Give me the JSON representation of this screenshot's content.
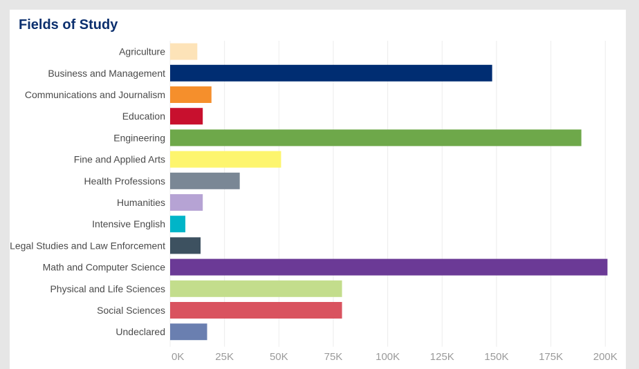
{
  "chart_data": {
    "type": "bar",
    "orientation": "horizontal",
    "title": "Fields of Study",
    "categories": [
      "Agriculture",
      "Business and Management",
      "Communications and Journalism",
      "Education",
      "Engineering",
      "Fine and Applied Arts",
      "Health Professions",
      "Humanities",
      "Intensive English",
      "Legal Studies and Law Enforcement",
      "Math and Computer Science",
      "Physical and Life Sciences",
      "Social Sciences",
      "Undeclared"
    ],
    "values": [
      12500,
      148000,
      19000,
      15000,
      189000,
      51000,
      32000,
      15000,
      7000,
      14000,
      201000,
      79000,
      79000,
      17000
    ],
    "colors": [
      "#fde3b8",
      "#002d72",
      "#f58f2c",
      "#c8102e",
      "#6ea84a",
      "#fdf56e",
      "#7a8795",
      "#b6a3d4",
      "#00b5c8",
      "#3d5160",
      "#6b3a96",
      "#c3dd8c",
      "#d9535f",
      "#6a7fb0"
    ],
    "xlim": [
      0,
      205000
    ],
    "xticks": [
      0,
      25000,
      50000,
      75000,
      100000,
      125000,
      150000,
      175000,
      200000
    ],
    "xtick_labels": [
      "0K",
      "25K",
      "50K",
      "75K",
      "100K",
      "125K",
      "150K",
      "175K",
      "200K"
    ],
    "xlabel": "",
    "ylabel": "",
    "grid": true,
    "legend": "none"
  }
}
